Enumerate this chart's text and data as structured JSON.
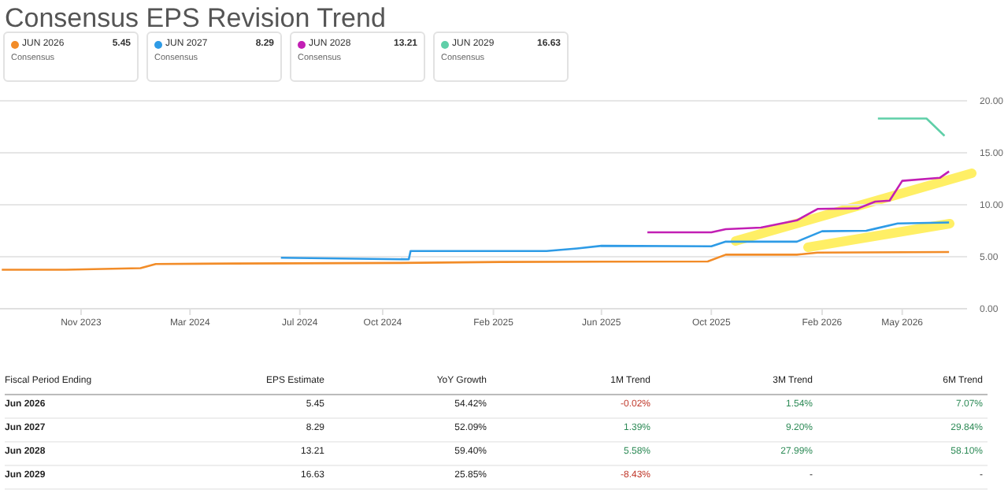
{
  "chart_data": {
    "type": "line",
    "title": "Consensus EPS Revision Trend",
    "series": [
      {
        "name": "JUN 2026",
        "color": "#f28c28",
        "x": [
          "2023-08-05",
          "2023-10-15",
          "2024-01-06",
          "2024-01-23",
          "2024-04-18",
          "2024-10-18",
          "2025-02-09",
          "2025-09-27",
          "2025-10-17",
          "2026-01-04",
          "2026-01-27",
          "2026-06-22"
        ],
        "values": [
          3.75,
          3.75,
          3.9,
          4.3,
          4.35,
          4.4,
          4.5,
          4.55,
          5.2,
          5.2,
          5.4,
          5.45
        ]
      },
      {
        "name": "JUN 2027",
        "color": "#2e9be6",
        "x": [
          "2024-06-10",
          "2024-10-30",
          "2024-11-01",
          "2025-04-01",
          "2025-05-05",
          "2025-06-01",
          "2025-10-01",
          "2025-10-17",
          "2026-01-04",
          "2026-02-01",
          "2026-03-22",
          "2026-04-01",
          "2026-04-26",
          "2026-06-22"
        ],
        "values": [
          4.9,
          4.75,
          5.55,
          5.55,
          5.8,
          6.05,
          6.0,
          6.45,
          6.45,
          7.45,
          7.5,
          7.7,
          8.2,
          8.29
        ]
      },
      {
        "name": "JUN 2028",
        "color": "#c21fb4",
        "x": [
          "2025-07-22",
          "2025-10-01",
          "2025-10-17",
          "2025-11-25",
          "2026-01-04",
          "2026-01-27",
          "2026-03-13",
          "2026-04-01",
          "2026-04-17",
          "2026-05-01",
          "2026-06-12",
          "2026-06-22"
        ],
        "values": [
          7.35,
          7.35,
          7.65,
          7.8,
          8.5,
          9.6,
          9.65,
          10.3,
          10.4,
          12.3,
          12.6,
          13.21
        ]
      },
      {
        "name": "JUN 2029",
        "color": "#5fcfa8",
        "x": [
          "2026-04-04",
          "2026-05-28",
          "2026-06-17"
        ],
        "values": [
          18.3,
          18.3,
          16.63
        ]
      }
    ],
    "xlim": [
      "2023-08-03",
      "2026-07-12"
    ],
    "xticks": [
      {
        "value": "2023-11-01",
        "label": "Nov 2023"
      },
      {
        "value": "2024-03-01",
        "label": "Mar 2024"
      },
      {
        "value": "2024-07-01",
        "label": "Jul 2024"
      },
      {
        "value": "2024-10-01",
        "label": "Oct 2024"
      },
      {
        "value": "2025-02-01",
        "label": "Feb 2025"
      },
      {
        "value": "2025-06-01",
        "label": "Jun 2025"
      },
      {
        "value": "2025-10-01",
        "label": "Oct 2025"
      },
      {
        "value": "2026-02-01",
        "label": "Feb 2026"
      },
      {
        "value": "2026-05-01",
        "label": "May 2026"
      }
    ],
    "ylim": [
      0,
      20
    ],
    "yticks": [
      {
        "value": 0,
        "label": "0.00"
      },
      {
        "value": 5,
        "label": "5.00"
      },
      {
        "value": 10,
        "label": "10.00"
      },
      {
        "value": 15,
        "label": "15.00"
      },
      {
        "value": 20,
        "label": "20.00"
      }
    ],
    "grid": "y",
    "legend": "top left",
    "marker": "none",
    "line_style": "solid",
    "annotations": [
      "Consensus",
      "Consensus",
      "Consensus",
      "Consensus",
      "Fiscal Period Ending",
      "EPS Estimate",
      "YoY Growth",
      "1M Trend",
      "3M Trend",
      "6M Trend",
      "Jun 2026",
      "5.45",
      "54.42%",
      "-0.02%",
      "1.54%",
      "7.07%",
      "Jun 2027",
      "8.29",
      "52.09%",
      "1.39%",
      "9.20%",
      "29.84%",
      "Jun 2028",
      "13.21",
      "59.40%",
      "5.58%",
      "27.99%",
      "58.10%",
      "Jun 2029",
      "16.63",
      "25.85%",
      "-8.43%",
      "-",
      "-"
    ]
  }
}
